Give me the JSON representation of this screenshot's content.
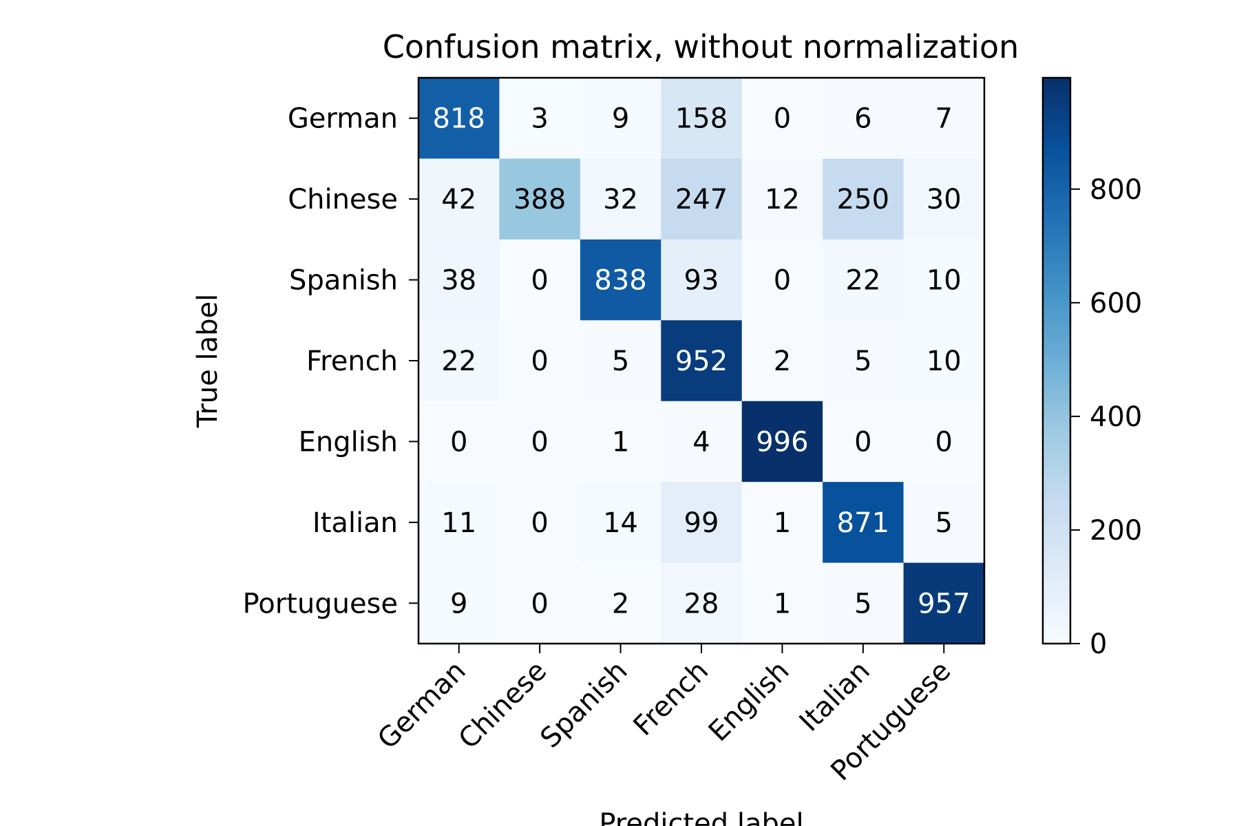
{
  "chart_data": {
    "type": "heatmap",
    "title": "Confusion matrix, without normalization",
    "xlabel": "Predicted label",
    "ylabel": "True label",
    "x_categories": [
      "German",
      "Chinese",
      "Spanish",
      "French",
      "English",
      "Italian",
      "Portuguese"
    ],
    "y_categories": [
      "German",
      "Chinese",
      "Spanish",
      "French",
      "English",
      "Italian",
      "Portuguese"
    ],
    "values": [
      [
        818,
        3,
        9,
        158,
        0,
        6,
        7
      ],
      [
        42,
        388,
        32,
        247,
        12,
        250,
        30
      ],
      [
        38,
        0,
        838,
        93,
        0,
        22,
        10
      ],
      [
        22,
        0,
        5,
        952,
        2,
        5,
        10
      ],
      [
        0,
        0,
        1,
        4,
        996,
        0,
        0
      ],
      [
        11,
        0,
        14,
        99,
        1,
        871,
        5
      ],
      [
        9,
        0,
        2,
        28,
        1,
        5,
        957
      ]
    ],
    "colormap": "Blues",
    "colorbar": {
      "range": [
        0,
        996
      ],
      "ticks": [
        0,
        200,
        400,
        600,
        800
      ]
    },
    "grid": false
  }
}
